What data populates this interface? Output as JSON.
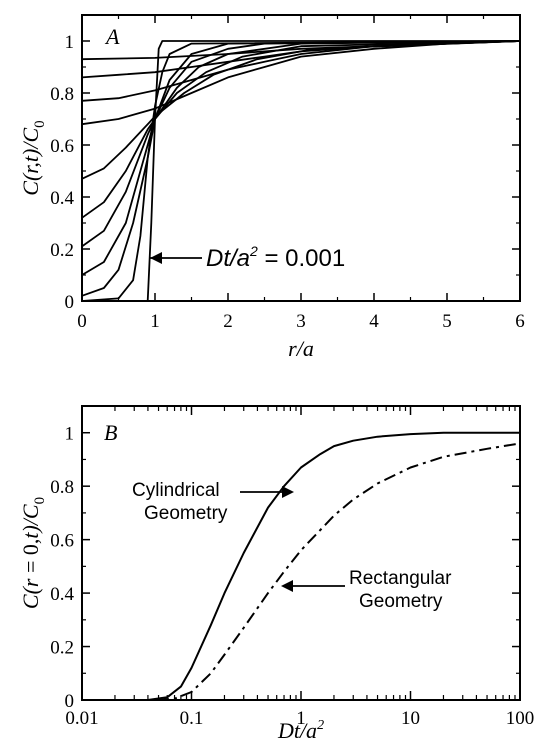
{
  "chart_data": [
    {
      "type": "line",
      "panel": "A",
      "xlabel": "r/a",
      "ylabel": "C(r,t)/C0",
      "xlim": [
        0,
        6
      ],
      "ylim": [
        0,
        1.1
      ],
      "xticks": [
        "0",
        "1",
        "2",
        "3",
        "4",
        "5",
        "6"
      ],
      "yticks": [
        "0",
        "0.2",
        "0.4",
        "0.6",
        "0.8",
        "1"
      ],
      "annotation": {
        "prefix": "Dt/a",
        "exp": "2",
        "suffix": " = 0.001"
      },
      "series": [
        {
          "x": [
            0,
            0.9,
            0.95,
            1.0,
            1.05,
            1.1,
            6
          ],
          "y": [
            0,
            0,
            0.3,
            0.7,
            0.97,
            1.0,
            1.0
          ]
        },
        {
          "x": [
            0,
            0.5,
            0.7,
            0.8,
            0.9,
            1.0,
            1.1,
            1.2,
            1.5,
            6
          ],
          "y": [
            0,
            0.01,
            0.08,
            0.25,
            0.55,
            0.75,
            0.88,
            0.95,
            0.99,
            1.0
          ]
        },
        {
          "x": [
            0,
            0.3,
            0.5,
            0.7,
            0.9,
            1.0,
            1.2,
            1.5,
            2,
            6
          ],
          "y": [
            0.02,
            0.05,
            0.12,
            0.3,
            0.55,
            0.7,
            0.85,
            0.95,
            0.99,
            1.0
          ]
        },
        {
          "x": [
            0,
            0.3,
            0.6,
            0.9,
            1.0,
            1.2,
            1.5,
            2,
            2.5,
            6
          ],
          "y": [
            0.1,
            0.15,
            0.3,
            0.6,
            0.7,
            0.82,
            0.92,
            0.97,
            0.99,
            1.0
          ]
        },
        {
          "x": [
            0,
            0.3,
            0.6,
            0.9,
            1.0,
            1.3,
            1.6,
            2,
            3,
            6
          ],
          "y": [
            0.21,
            0.27,
            0.42,
            0.64,
            0.7,
            0.82,
            0.9,
            0.95,
            0.99,
            1.0
          ]
        },
        {
          "x": [
            0,
            0.3,
            0.6,
            0.9,
            1.0,
            1.3,
            1.7,
            2.2,
            3,
            6
          ],
          "y": [
            0.32,
            0.38,
            0.5,
            0.66,
            0.7,
            0.8,
            0.88,
            0.94,
            0.98,
            1.0
          ]
        },
        {
          "x": [
            0,
            0.3,
            0.6,
            0.9,
            1.0,
            1.4,
            1.8,
            2.4,
            3.2,
            6
          ],
          "y": [
            0.47,
            0.51,
            0.59,
            0.68,
            0.71,
            0.8,
            0.87,
            0.93,
            0.97,
            1.0
          ]
        },
        {
          "x": [
            0,
            0.5,
            1.0,
            1.5,
            2,
            2.5,
            3,
            4,
            5,
            6
          ],
          "y": [
            0.68,
            0.7,
            0.74,
            0.8,
            0.86,
            0.9,
            0.94,
            0.97,
            0.99,
            1.0
          ]
        },
        {
          "x": [
            0,
            0.5,
            1.0,
            1.5,
            2,
            2.5,
            3,
            4,
            5,
            6
          ],
          "y": [
            0.77,
            0.78,
            0.81,
            0.85,
            0.89,
            0.92,
            0.95,
            0.98,
            0.99,
            1.0
          ]
        },
        {
          "x": [
            0,
            0.5,
            1.0,
            1.5,
            2,
            2.5,
            3,
            4,
            5,
            6
          ],
          "y": [
            0.86,
            0.87,
            0.88,
            0.9,
            0.92,
            0.94,
            0.96,
            0.98,
            0.99,
            1.0
          ]
        },
        {
          "x": [
            0,
            1.0,
            2,
            3,
            4,
            5,
            6
          ],
          "y": [
            0.93,
            0.935,
            0.95,
            0.97,
            0.98,
            0.99,
            1.0
          ]
        }
      ]
    },
    {
      "type": "line",
      "panel": "B",
      "xlabel": "Dt/a",
      "xlabel_exp": "2",
      "ylabel": "C(r = 0,t)/C0",
      "xscale": "log",
      "xlim": [
        0.01,
        100
      ],
      "ylim": [
        0,
        1.1
      ],
      "xticks": [
        "0.01",
        "0.1",
        "1",
        "10",
        "100"
      ],
      "yticks": [
        "0",
        "0.2",
        "0.4",
        "0.6",
        "0.8",
        "1"
      ],
      "annotations": [
        {
          "lines": [
            "Cylindrical",
            "Geometry"
          ]
        },
        {
          "lines": [
            "Rectangular",
            "Geometry"
          ]
        }
      ],
      "series": [
        {
          "name": "Cylindrical Geometry",
          "style": "solid",
          "x": [
            0.01,
            0.04,
            0.06,
            0.08,
            0.1,
            0.15,
            0.2,
            0.3,
            0.5,
            0.7,
            1,
            1.5,
            2,
            3,
            5,
            10,
            20,
            50,
            100
          ],
          "y": [
            0,
            0,
            0.01,
            0.05,
            0.12,
            0.28,
            0.4,
            0.55,
            0.72,
            0.8,
            0.87,
            0.92,
            0.95,
            0.97,
            0.985,
            0.995,
            1.0,
            1.0,
            1.0
          ]
        },
        {
          "name": "Rectangular Geometry",
          "style": "dash-dot",
          "x": [
            0.01,
            0.05,
            0.07,
            0.1,
            0.15,
            0.2,
            0.3,
            0.5,
            0.7,
            1,
            2,
            3,
            5,
            10,
            20,
            50,
            100
          ],
          "y": [
            0,
            0,
            0.005,
            0.03,
            0.1,
            0.17,
            0.27,
            0.4,
            0.48,
            0.56,
            0.69,
            0.75,
            0.81,
            0.87,
            0.91,
            0.94,
            0.96
          ]
        }
      ]
    }
  ]
}
